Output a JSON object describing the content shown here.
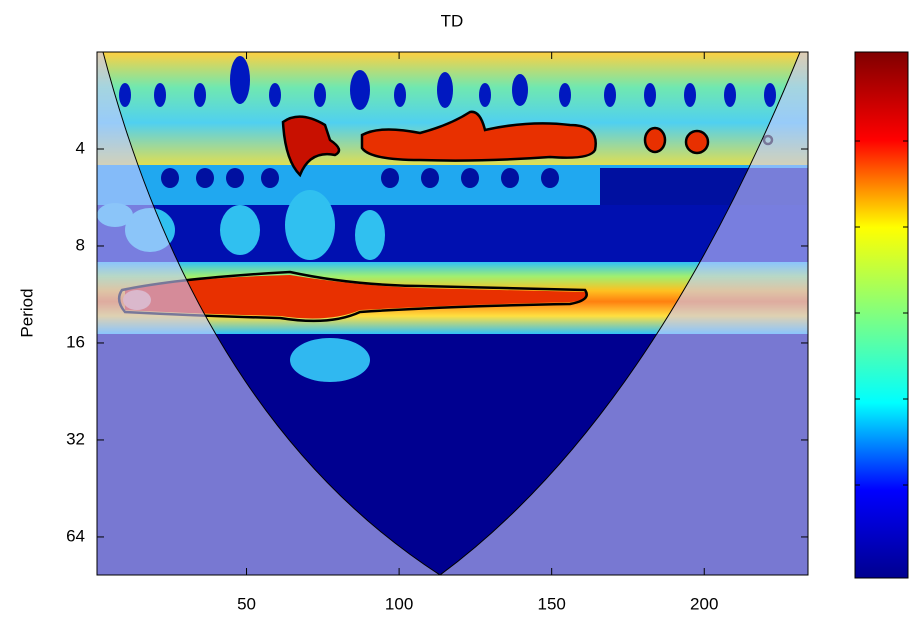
{
  "chart_data": {
    "type": "wavelet",
    "title": "TD",
    "ylabel": "Period",
    "xlim": [
      1,
      234
    ],
    "xticks": [
      50,
      100,
      150,
      200
    ],
    "ylim": [
      2,
      84
    ],
    "yticks": [
      4,
      8,
      16,
      32,
      64
    ],
    "yscale": "log2",
    "yreverse": true,
    "colormap": "jet"
  }
}
